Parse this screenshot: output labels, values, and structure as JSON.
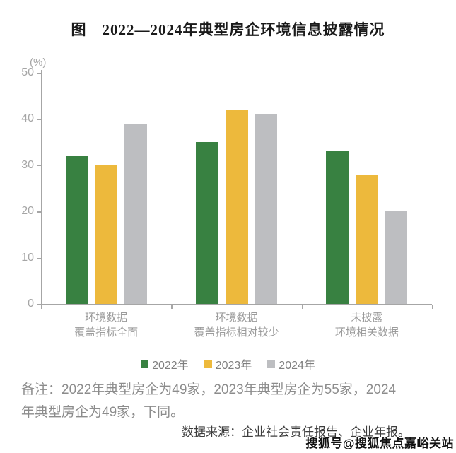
{
  "title": "图　2022—2024年典型房企环境信息披露情况",
  "chart_data": {
    "type": "bar",
    "title": "图 2022—2024年典型房企环境信息披露情况",
    "unit_label": "(%)",
    "xlabel": "",
    "ylabel": "(%)",
    "ylim": [
      0,
      50
    ],
    "yticks": [
      0,
      10,
      20,
      30,
      40,
      50
    ],
    "grid": false,
    "legend_position": "bottom",
    "categories": [
      [
        "环境数据",
        "覆盖指标全面"
      ],
      [
        "环境数据",
        "覆盖指标相对较少"
      ],
      [
        "未披露",
        "环境相关数据"
      ]
    ],
    "series": [
      {
        "name": "2022年",
        "color": "#388141",
        "values": [
          32,
          35,
          33
        ]
      },
      {
        "name": "2023年",
        "color": "#EDB93C",
        "values": [
          30,
          42,
          28
        ]
      },
      {
        "name": "2024年",
        "color": "#BDBEC1",
        "values": [
          39,
          41,
          20
        ]
      }
    ]
  },
  "notes": {
    "remark_lines": [
      "备注：2022年典型房企为49家，2023年典型房企为55家，2024",
      "年典型房企为49家，下同。"
    ],
    "source": "数据来源：企业社会责任报告、企业年报。",
    "watermark": "搜狐号@搜狐焦点嘉峪关站"
  },
  "colors": {
    "axis": "#a6a6a6",
    "tick_label": "#a6a6a6",
    "category_label": "#9b9b9b",
    "legend_text": "#7f7f7f",
    "remark_text": "#8c8c8c",
    "source_text": "#3d3d3d",
    "title_text": "#1a1a1a",
    "background": "#ffffff"
  }
}
